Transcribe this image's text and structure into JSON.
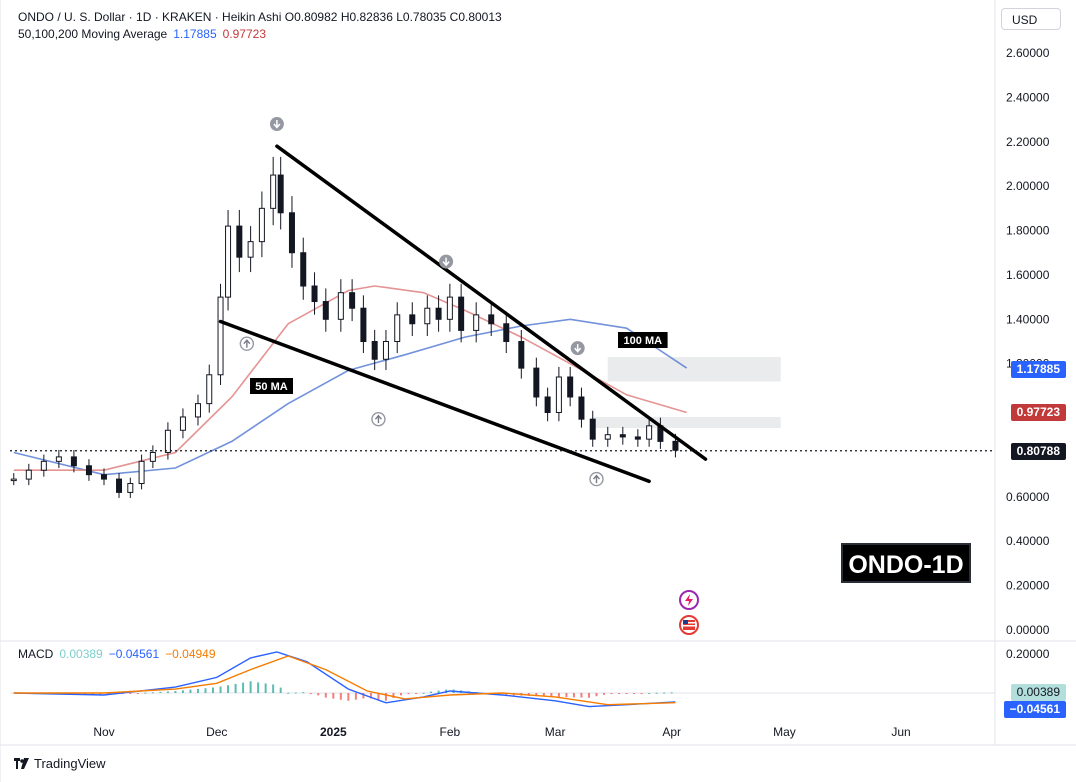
{
  "header": {
    "symbol": "ONDO / U. S. Dollar · 1D · KRAKEN · Heikin Ashi",
    "o_label": "O",
    "o_value": "0.80982",
    "h_label": "H",
    "h_value": "0.82836",
    "l_label": "L",
    "l_value": "0.78035",
    "c_label": "C",
    "c_value": "0.80013",
    "ma_label": "50,100,200 Moving Average",
    "ma50_value": "1.17885",
    "ma100_value": "0.97723"
  },
  "currency": "USD",
  "watermark": "ONDO-1D",
  "brand": "TradingView",
  "annotations": {
    "ma50_label": "50 MA",
    "ma100_label": "100 MA"
  },
  "price_tags": {
    "ma50": {
      "text": "1.17885",
      "color": "#2962ff"
    },
    "ma100": {
      "text": "0.97723",
      "color": "#c2393a"
    },
    "last": {
      "text": "0.80788",
      "color": "#131722"
    }
  },
  "macd_header": {
    "label": "MACD",
    "hist": "0.00389",
    "macd": "−0.04561",
    "signal": "−0.04949"
  },
  "macd_tags": {
    "hist": "0.00389",
    "macd": "−0.04561"
  },
  "colors": {
    "up": "#131722",
    "down": "#131722",
    "ma50": "#5b7fd6",
    "ma100": "#e08080",
    "macd": "#2962ff",
    "signal": "#f57c00",
    "hist_up": "#26a69a",
    "hist_down": "#ef5350"
  },
  "chart_data": [
    {
      "type": "candlestick",
      "title": "ONDO / U. S. Dollar · 1D · KRAKEN · Heikin Ashi",
      "ylim": [
        0,
        2.7
      ],
      "y_ticks": [
        "2.60000",
        "2.40000",
        "2.20000",
        "2.00000",
        "1.80000",
        "1.60000",
        "1.40000",
        "1.20000",
        "1.00000",
        "0.80000",
        "0.60000",
        "0.40000",
        "0.20000",
        "0.00000"
      ],
      "x_ticks": [
        {
          "label": "Nov",
          "date": "2024-11-01"
        },
        {
          "label": "Dec",
          "date": "2024-12-01"
        },
        {
          "label": "2025",
          "date": "2025-01-01"
        },
        {
          "label": "Feb",
          "date": "2025-02-01"
        },
        {
          "label": "Mar",
          "date": "2025-03-01"
        },
        {
          "label": "Apr",
          "date": "2025-04-01"
        },
        {
          "label": "May",
          "date": "2025-05-01"
        },
        {
          "label": "Jun",
          "date": "2025-06-01"
        }
      ],
      "x_range": [
        "2024-10-07",
        "2025-06-26"
      ],
      "close_series": [
        [
          "2024-10-08",
          0.68
        ],
        [
          "2024-10-12",
          0.72
        ],
        [
          "2024-10-16",
          0.76
        ],
        [
          "2024-10-20",
          0.78
        ],
        [
          "2024-10-24",
          0.74
        ],
        [
          "2024-10-28",
          0.7
        ],
        [
          "2024-11-01",
          0.68
        ],
        [
          "2024-11-05",
          0.62
        ],
        [
          "2024-11-08",
          0.66
        ],
        [
          "2024-11-11",
          0.76
        ],
        [
          "2024-11-14",
          0.8
        ],
        [
          "2024-11-18",
          0.9
        ],
        [
          "2024-11-22",
          0.96
        ],
        [
          "2024-11-26",
          1.02
        ],
        [
          "2024-11-29",
          1.15
        ],
        [
          "2024-12-02",
          1.5
        ],
        [
          "2024-12-04",
          1.82
        ],
        [
          "2024-12-07",
          1.68
        ],
        [
          "2024-12-10",
          1.75
        ],
        [
          "2024-12-13",
          1.9
        ],
        [
          "2024-12-16",
          2.05
        ],
        [
          "2024-12-18",
          1.88
        ],
        [
          "2024-12-21",
          1.7
        ],
        [
          "2024-12-24",
          1.55
        ],
        [
          "2024-12-27",
          1.48
        ],
        [
          "2024-12-30",
          1.4
        ],
        [
          "2025-01-03",
          1.52
        ],
        [
          "2025-01-06",
          1.45
        ],
        [
          "2025-01-09",
          1.3
        ],
        [
          "2025-01-12",
          1.22
        ],
        [
          "2025-01-15",
          1.3
        ],
        [
          "2025-01-18",
          1.42
        ],
        [
          "2025-01-22",
          1.38
        ],
        [
          "2025-01-26",
          1.45
        ],
        [
          "2025-01-29",
          1.4
        ],
        [
          "2025-02-01",
          1.5
        ],
        [
          "2025-02-04",
          1.35
        ],
        [
          "2025-02-08",
          1.42
        ],
        [
          "2025-02-12",
          1.38
        ],
        [
          "2025-02-16",
          1.3
        ],
        [
          "2025-02-20",
          1.18
        ],
        [
          "2025-02-24",
          1.05
        ],
        [
          "2025-02-27",
          0.98
        ],
        [
          "2025-03-02",
          1.14
        ],
        [
          "2025-03-05",
          1.05
        ],
        [
          "2025-03-08",
          0.95
        ],
        [
          "2025-03-11",
          0.86
        ],
        [
          "2025-03-15",
          0.88
        ],
        [
          "2025-03-19",
          0.87
        ],
        [
          "2025-03-23",
          0.86
        ],
        [
          "2025-03-26",
          0.92
        ],
        [
          "2025-03-29",
          0.85
        ],
        [
          "2025-04-02",
          0.81
        ]
      ],
      "moving_averages": [
        {
          "name": "50 MA",
          "last": 1.17885,
          "points": [
            [
              "2024-10-08",
              0.8
            ],
            [
              "2024-11-01",
              0.7
            ],
            [
              "2024-11-20",
              0.73
            ],
            [
              "2024-12-05",
              0.85
            ],
            [
              "2024-12-20",
              1.02
            ],
            [
              "2025-01-05",
              1.17
            ],
            [
              "2025-01-20",
              1.24
            ],
            [
              "2025-02-05",
              1.32
            ],
            [
              "2025-02-20",
              1.37
            ],
            [
              "2025-03-05",
              1.4
            ],
            [
              "2025-03-20",
              1.36
            ],
            [
              "2025-04-05",
              1.18
            ]
          ]
        },
        {
          "name": "100 MA",
          "last": 0.97723,
          "points": [
            [
              "2024-10-08",
              0.72
            ],
            [
              "2024-11-01",
              0.72
            ],
            [
              "2024-11-20",
              0.8
            ],
            [
              "2024-12-05",
              1.05
            ],
            [
              "2024-12-20",
              1.38
            ],
            [
              "2025-01-05",
              1.53
            ],
            [
              "2025-01-12",
              1.55
            ],
            [
              "2025-01-25",
              1.52
            ],
            [
              "2025-02-05",
              1.44
            ],
            [
              "2025-02-20",
              1.32
            ],
            [
              "2025-03-05",
              1.2
            ],
            [
              "2025-03-20",
              1.06
            ],
            [
              "2025-04-05",
              0.98
            ]
          ]
        }
      ],
      "trendlines": [
        {
          "name": "upper",
          "from": [
            "2024-12-17",
            2.18
          ],
          "to": [
            "2025-04-10",
            0.77
          ]
        },
        {
          "name": "lower",
          "from": [
            "2024-12-02",
            1.39
          ],
          "to": [
            "2025-03-26",
            0.67
          ]
        }
      ],
      "zones": [
        {
          "from": [
            "2025-03-15",
            1.23
          ],
          "to": [
            "2025-04-30",
            1.12
          ]
        },
        {
          "from": [
            "2025-03-11",
            0.96
          ],
          "to": [
            "2025-04-30",
            0.91
          ]
        }
      ],
      "arrow_markers": [
        {
          "date": "2024-12-17",
          "price": 2.28,
          "dir": "down"
        },
        {
          "date": "2025-01-31",
          "price": 1.66,
          "dir": "down"
        },
        {
          "date": "2025-03-07",
          "price": 1.27,
          "dir": "down"
        },
        {
          "date": "2024-12-09",
          "price": 1.29,
          "dir": "up"
        },
        {
          "date": "2025-01-13",
          "price": 0.95,
          "dir": "up"
        },
        {
          "date": "2025-03-12",
          "price": 0.68,
          "dir": "up"
        }
      ],
      "last_price": 0.80788
    },
    {
      "type": "line",
      "title": "MACD",
      "ylim": [
        -0.07,
        0.23
      ],
      "y_ticks": [
        "0.20000"
      ],
      "series": [
        {
          "name": "MACD",
          "points": [
            [
              "2024-10-08",
              0.0
            ],
            [
              "2024-11-01",
              -0.01
            ],
            [
              "2024-11-20",
              0.03
            ],
            [
              "2024-12-01",
              0.08
            ],
            [
              "2024-12-10",
              0.18
            ],
            [
              "2024-12-17",
              0.21
            ],
            [
              "2024-12-25",
              0.16
            ],
            [
              "2025-01-05",
              0.02
            ],
            [
              "2025-01-15",
              -0.05
            ],
            [
              "2025-01-25",
              -0.02
            ],
            [
              "2025-02-01",
              0.01
            ],
            [
              "2025-02-15",
              -0.01
            ],
            [
              "2025-03-01",
              -0.04
            ],
            [
              "2025-03-10",
              -0.07
            ],
            [
              "2025-03-20",
              -0.06
            ],
            [
              "2025-04-02",
              -0.04561
            ]
          ]
        },
        {
          "name": "Signal",
          "points": [
            [
              "2024-10-08",
              0.0
            ],
            [
              "2024-11-01",
              0.0
            ],
            [
              "2024-11-20",
              0.02
            ],
            [
              "2024-12-01",
              0.05
            ],
            [
              "2024-12-10",
              0.12
            ],
            [
              "2024-12-20",
              0.19
            ],
            [
              "2024-12-30",
              0.12
            ],
            [
              "2025-01-10",
              0.01
            ],
            [
              "2025-01-20",
              -0.03
            ],
            [
              "2025-02-01",
              -0.01
            ],
            [
              "2025-02-15",
              0.0
            ],
            [
              "2025-03-01",
              -0.02
            ],
            [
              "2025-03-15",
              -0.06
            ],
            [
              "2025-04-02",
              -0.04949
            ]
          ]
        }
      ],
      "histogram_last": 0.00389
    }
  ]
}
